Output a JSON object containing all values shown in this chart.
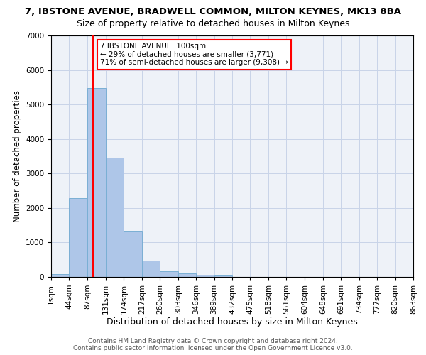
{
  "title": "7, IBSTONE AVENUE, BRADWELL COMMON, MILTON KEYNES, MK13 8BA",
  "subtitle": "Size of property relative to detached houses in Milton Keynes",
  "xlabel": "Distribution of detached houses by size in Milton Keynes",
  "ylabel": "Number of detached properties",
  "bar_color": "#aec6e8",
  "bar_edge_color": "#7aafd4",
  "grid_color": "#c8d4e8",
  "background_color": "#eef2f8",
  "red_line_x": 100,
  "annotation_line1": "7 IBSTONE AVENUE: 100sqm",
  "annotation_line2": "← 29% of detached houses are smaller (3,771)",
  "annotation_line3": "71% of semi-detached houses are larger (9,308) →",
  "annotation_box_color": "white",
  "annotation_border_color": "red",
  "footer_line1": "Contains HM Land Registry data © Crown copyright and database right 2024.",
  "footer_line2": "Contains public sector information licensed under the Open Government Licence v3.0.",
  "bin_edges": [
    1,
    44,
    87,
    131,
    174,
    217,
    260,
    303,
    346,
    389,
    432,
    475,
    518,
    561,
    604,
    648,
    691,
    734,
    777,
    820,
    863
  ],
  "bar_heights": [
    80,
    2280,
    5480,
    3450,
    1310,
    470,
    165,
    95,
    55,
    35,
    0,
    0,
    0,
    0,
    0,
    0,
    0,
    0,
    0,
    0
  ],
  "ylim": [
    0,
    7000
  ],
  "yticks": [
    0,
    1000,
    2000,
    3000,
    4000,
    5000,
    6000,
    7000
  ],
  "title_fontsize": 9.5,
  "subtitle_fontsize": 9,
  "xlabel_fontsize": 9,
  "ylabel_fontsize": 8.5,
  "tick_fontsize": 7.5,
  "footer_fontsize": 6.5
}
